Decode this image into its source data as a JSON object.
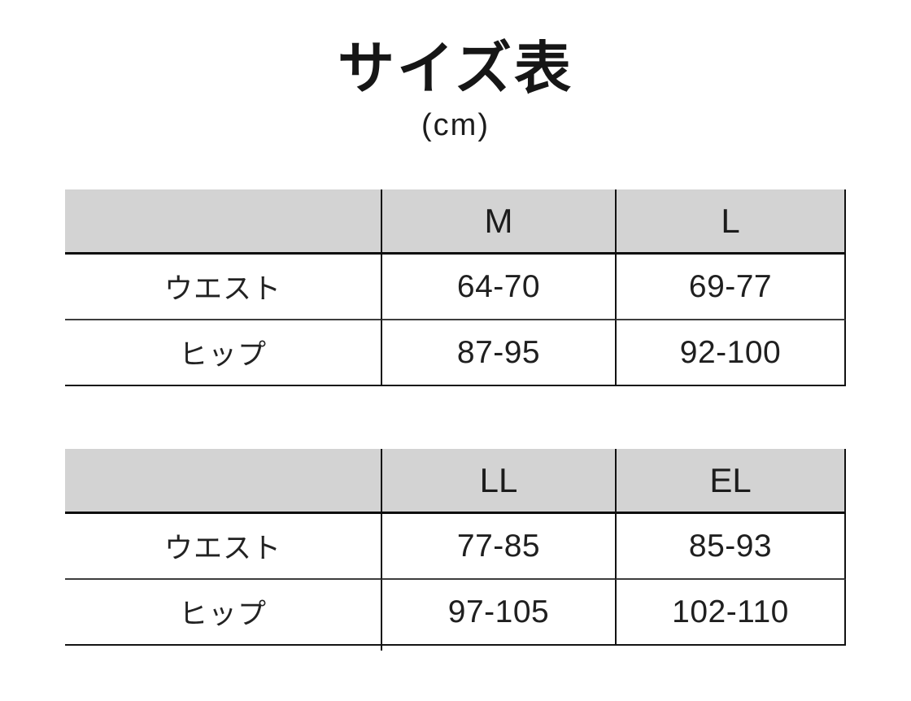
{
  "title": "サイズ表",
  "unit_label": "(cm)",
  "colors": {
    "header_bg": "#d3d3d3",
    "text": "#1c1c1c",
    "line": "#121212",
    "background": "#ffffff"
  },
  "chart_data": [
    {
      "type": "table",
      "title": "サイズ表",
      "subtitle": "(cm)",
      "columns": [
        "",
        "M",
        "L"
      ],
      "rows": [
        {
          "label": "ウエスト",
          "values": [
            "64-70",
            "69-77"
          ]
        },
        {
          "label": "ヒップ",
          "values": [
            "87-95",
            "92-100"
          ]
        }
      ]
    },
    {
      "type": "table",
      "columns": [
        "",
        "LL",
        "EL"
      ],
      "rows": [
        {
          "label": "ウエスト",
          "values": [
            "77-85",
            "85-93"
          ]
        },
        {
          "label": "ヒップ",
          "values": [
            "97-105",
            "102-110"
          ]
        }
      ]
    }
  ]
}
